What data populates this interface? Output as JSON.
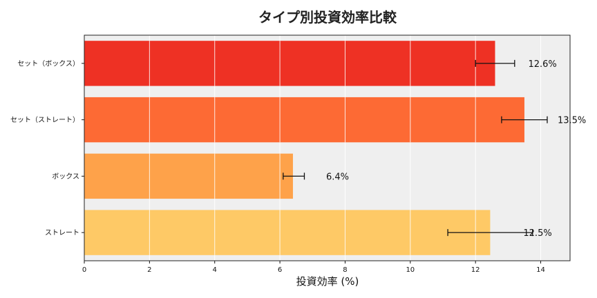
{
  "chart_data": {
    "type": "bar",
    "orientation": "horizontal",
    "title": "タイプ別投資効率比較",
    "xlabel": "投資効率 (%)",
    "ylabel": "",
    "xlim": [
      0,
      14.9
    ],
    "xticks": [
      "0",
      "2",
      "4",
      "6",
      "8",
      "10",
      "12",
      "14"
    ],
    "grid": true,
    "categories": [
      "セット（ボックス）",
      "セット（ストレート）",
      "ボックス",
      "ストレート"
    ],
    "values": [
      12.6,
      13.5,
      6.4,
      12.45
    ],
    "error_low": [
      12.0,
      12.8,
      6.1,
      11.15
    ],
    "error_high": [
      13.2,
      14.2,
      6.75,
      13.75
    ],
    "value_labels": [
      "12.6%",
      "13.5%",
      "6.4%",
      "12.5%"
    ],
    "colors": [
      "#ee3124",
      "#fd6a34",
      "#fea24a",
      "#fec966"
    ],
    "background": "#efefef"
  }
}
